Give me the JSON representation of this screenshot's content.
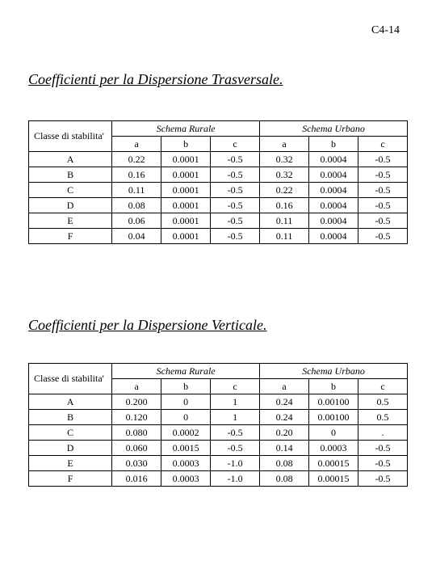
{
  "page_number": "C4-14",
  "heading1": "Coefficienti per la Dispersione Trasversale.",
  "heading2": "Coefficienti per la Dispersione Verticale.",
  "common": {
    "row_header": "Classe di stabilita'",
    "scheme1": "Schema Rurale",
    "scheme2": "Schema Urbano",
    "col_a": "a",
    "col_b": "b",
    "col_c": "c"
  },
  "table1": {
    "rows": [
      {
        "cls": "A",
        "r_a": "0.22",
        "r_b": "0.0001",
        "r_c": "-0.5",
        "u_a": "0.32",
        "u_b": "0.0004",
        "u_c": "-0.5"
      },
      {
        "cls": "B",
        "r_a": "0.16",
        "r_b": "0.0001",
        "r_c": "-0.5",
        "u_a": "0.32",
        "u_b": "0.0004",
        "u_c": "-0.5"
      },
      {
        "cls": "C",
        "r_a": "0.11",
        "r_b": "0.0001",
        "r_c": "-0.5",
        "u_a": "0.22",
        "u_b": "0.0004",
        "u_c": "-0.5"
      },
      {
        "cls": "D",
        "r_a": "0.08",
        "r_b": "0.0001",
        "r_c": "-0.5",
        "u_a": "0.16",
        "u_b": "0.0004",
        "u_c": "-0.5"
      },
      {
        "cls": "E",
        "r_a": "0.06",
        "r_b": "0.0001",
        "r_c": "-0.5",
        "u_a": "0.11",
        "u_b": "0.0004",
        "u_c": "-0.5"
      },
      {
        "cls": "F",
        "r_a": "0.04",
        "r_b": "0.0001",
        "r_c": "-0.5",
        "u_a": "0.11",
        "u_b": "0.0004",
        "u_c": "-0.5"
      }
    ]
  },
  "table2": {
    "rows": [
      {
        "cls": "A",
        "r_a": "0.200",
        "r_b": "0",
        "r_c": "1",
        "u_a": "0.24",
        "u_b": "0.00100",
        "u_c": "0.5"
      },
      {
        "cls": "B",
        "r_a": "0.120",
        "r_b": "0",
        "r_c": "1",
        "u_a": "0.24",
        "u_b": "0.00100",
        "u_c": "0.5"
      },
      {
        "cls": "C",
        "r_a": "0.080",
        "r_b": "0.0002",
        "r_c": "-0.5",
        "u_a": "0.20",
        "u_b": "0",
        "u_c": "."
      },
      {
        "cls": "D",
        "r_a": "0.060",
        "r_b": "0.0015",
        "r_c": "-0.5",
        "u_a": "0.14",
        "u_b": "0.0003",
        "u_c": "-0.5"
      },
      {
        "cls": "E",
        "r_a": "0.030",
        "r_b": "0.0003",
        "r_c": "-1.0",
        "u_a": "0.08",
        "u_b": "0.00015",
        "u_c": "-0.5"
      },
      {
        "cls": "F",
        "r_a": "0.016",
        "r_b": "0.0003",
        "r_c": "-1.0",
        "u_a": "0.08",
        "u_b": "0.00015",
        "u_c": "-0.5"
      }
    ]
  }
}
